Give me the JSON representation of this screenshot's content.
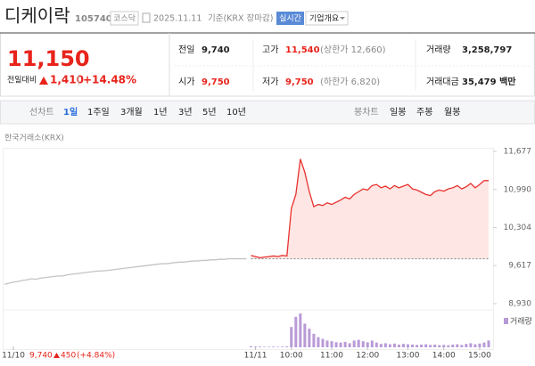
{
  "header": {
    "name": "디케이락",
    "code": "105740",
    "market": "코스닥",
    "date": "2025.11.11",
    "basis": "기준(KRX 장마감)",
    "realtime": "실시간",
    "company_info": "기업개요"
  },
  "price": {
    "current": "11,150",
    "change_label": "전일대비",
    "change": "1,410",
    "change_rate": "+14.48%"
  },
  "stats": [
    {
      "label": "전일",
      "value": "9,740"
    },
    {
      "label": "고가",
      "value": "11,540",
      "note": "(상한가 12,660)"
    },
    {
      "label": "거래량",
      "value": "3,258,797"
    },
    {
      "label": "시가",
      "value": "9,750"
    },
    {
      "label": "저가",
      "value": "9,750",
      "note": "(하한가 6,820)"
    },
    {
      "label": "거래대금",
      "value": "35,479 백만"
    }
  ],
  "tabs": {
    "line_label": "선차트",
    "line": [
      "1일",
      "1주일",
      "3개월",
      "1년",
      "3년",
      "5년",
      "10년"
    ],
    "candle_label": "봉차트",
    "candle": [
      "일봉",
      "주봉",
      "월봉"
    ]
  },
  "chart": {
    "type": "line",
    "source": "한국거래소(KRX)",
    "xlim": [
      0,
      108
    ],
    "xticks": [
      {
        "value": 2,
        "label": "11/10"
      },
      {
        "value": 56,
        "label": "11/11"
      },
      {
        "value": 64,
        "label": "10:00"
      },
      {
        "value": 73,
        "label": "11:00"
      },
      {
        "value": 81,
        "label": "12:00"
      },
      {
        "value": 90,
        "label": "13:00"
      },
      {
        "value": 98,
        "label": "14:00"
      },
      {
        "value": 106,
        "label": "15:00"
      }
    ],
    "ylim": [
      8930,
      11677
    ],
    "yticks": [
      {
        "value": 11677,
        "label": "11,677"
      },
      {
        "value": 10990,
        "label": "10,990"
      },
      {
        "value": 10304,
        "label": "10,304"
      },
      {
        "value": 9617,
        "label": "9,617"
      },
      {
        "value": 8930,
        "label": "8,930"
      }
    ],
    "baseline": 9740,
    "series": [
      {
        "color": "#c4c4c4",
        "values": [
          9280,
          9300,
          9320,
          9330,
          9350,
          9360,
          9380,
          9370,
          9390,
          9400,
          9410,
          9420,
          9430,
          9430,
          9450,
          9460,
          9470,
          9480,
          9490,
          9500,
          9510,
          9520,
          9520,
          9530,
          9540,
          9550,
          9560,
          9570,
          9580,
          9590,
          9600,
          9610,
          9620,
          9630,
          9640,
          9650,
          9650,
          9660,
          9670,
          9680,
          9680,
          9690,
          9700,
          9700,
          9710,
          9710,
          9720,
          9720,
          9730,
          9730,
          9740,
          9740,
          9740,
          9740,
          9740,
          null,
          null,
          null,
          null,
          null,
          null,
          null,
          null,
          null,
          null,
          null,
          null,
          null,
          null,
          null,
          null,
          null,
          null,
          null,
          null,
          null,
          null,
          null,
          null,
          null,
          null,
          null,
          null,
          null,
          null,
          null,
          null,
          null,
          null,
          null,
          null,
          null,
          null,
          null,
          null,
          null,
          null,
          null,
          null,
          null,
          null,
          null,
          null,
          null
        ]
      },
      {
        "color": "#e8322f",
        "fill": "#fde6e3",
        "values": [
          null,
          null,
          null,
          null,
          null,
          null,
          null,
          null,
          null,
          null,
          null,
          null,
          null,
          null,
          null,
          null,
          null,
          null,
          null,
          null,
          null,
          null,
          null,
          null,
          null,
          null,
          null,
          null,
          null,
          null,
          null,
          null,
          null,
          null,
          null,
          null,
          null,
          null,
          null,
          null,
          null,
          null,
          null,
          null,
          null,
          null,
          null,
          null,
          null,
          null,
          null,
          null,
          null,
          null,
          null,
          9800,
          9780,
          9760,
          9770,
          9780,
          9790,
          9780,
          9800,
          9790,
          10650,
          10900,
          11540,
          11300,
          10950,
          10680,
          10720,
          10700,
          10750,
          10720,
          10760,
          10800,
          10850,
          10820,
          10900,
          10950,
          11000,
          10980,
          11060,
          11080,
          11020,
          11050,
          11000,
          11060,
          11020,
          11050,
          11080,
          11000,
          10980,
          10940,
          10900,
          10880,
          10950,
          10980,
          10960,
          11000,
          11020,
          11060,
          11000,
          11040,
          11100,
          11020,
          11080,
          11150,
          11150
        ]
      }
    ],
    "volume": {
      "name": "거래량",
      "color": "#b99ad8",
      "ylim": [
        0,
        100000
      ],
      "values": [
        null,
        null,
        null,
        null,
        null,
        null,
        null,
        null,
        null,
        null,
        null,
        null,
        null,
        null,
        null,
        null,
        null,
        null,
        null,
        null,
        null,
        null,
        null,
        null,
        null,
        null,
        null,
        null,
        null,
        null,
        null,
        null,
        null,
        null,
        null,
        null,
        null,
        null,
        null,
        null,
        null,
        null,
        null,
        null,
        null,
        null,
        null,
        null,
        null,
        null,
        null,
        null,
        null,
        null,
        null,
        3000,
        2000,
        2000,
        1500,
        1500,
        2000,
        1500,
        2000,
        2500,
        60000,
        90000,
        100000,
        70000,
        55000,
        40000,
        30000,
        25000,
        20000,
        18000,
        15000,
        14000,
        16000,
        12000,
        20000,
        22000,
        18000,
        15000,
        20000,
        14000,
        10000,
        12000,
        9000,
        11000,
        8000,
        10000,
        9000,
        8000,
        7000,
        8000,
        9000,
        7000,
        8000,
        6000,
        7000,
        6000,
        8000,
        9000,
        7000,
        10000,
        12000,
        9000,
        11000,
        14000,
        20000
      ]
    },
    "prev_summary": {
      "price": "9,740",
      "change": "450",
      "rate": "(+4.84%)"
    }
  }
}
